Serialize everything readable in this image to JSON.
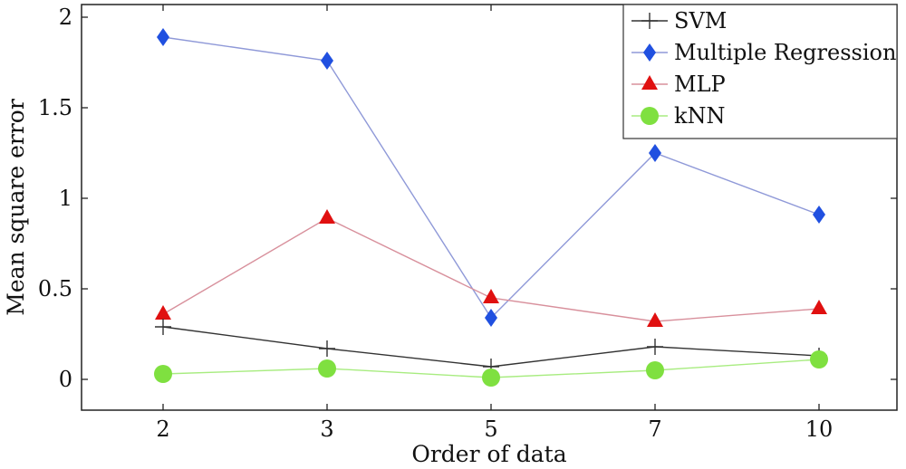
{
  "chart_data": {
    "type": "line",
    "title": "",
    "xlabel": "Order of data",
    "ylabel": "Mean square error",
    "categories": [
      "2",
      "3",
      "5",
      "7",
      "10"
    ],
    "ylim": [
      -0.17,
      2.07
    ],
    "yticks": [
      0,
      0.5,
      1,
      1.5,
      2
    ],
    "ytick_labels": [
      "0",
      "0.5",
      "1",
      "1.5",
      "2"
    ],
    "grid": false,
    "legend_position": "top-right",
    "series": [
      {
        "name": "SVM",
        "marker": "plus",
        "color": "#333333",
        "values": [
          0.29,
          0.17,
          0.07,
          0.18,
          0.13
        ]
      },
      {
        "name": "Multiple Regression",
        "marker": "diamond",
        "color": "#2050e0",
        "line_color": "#8f99d8",
        "values": [
          1.89,
          1.76,
          0.34,
          1.25,
          0.91
        ]
      },
      {
        "name": "MLP",
        "marker": "triangle",
        "color": "#e01010",
        "line_color": "#d8909c",
        "values": [
          0.36,
          0.89,
          0.45,
          0.32,
          0.39
        ]
      },
      {
        "name": "kNN",
        "marker": "circle",
        "color": "#7fe040",
        "line_color": "#a8ec80",
        "values": [
          0.03,
          0.06,
          0.01,
          0.05,
          0.11
        ]
      }
    ]
  }
}
